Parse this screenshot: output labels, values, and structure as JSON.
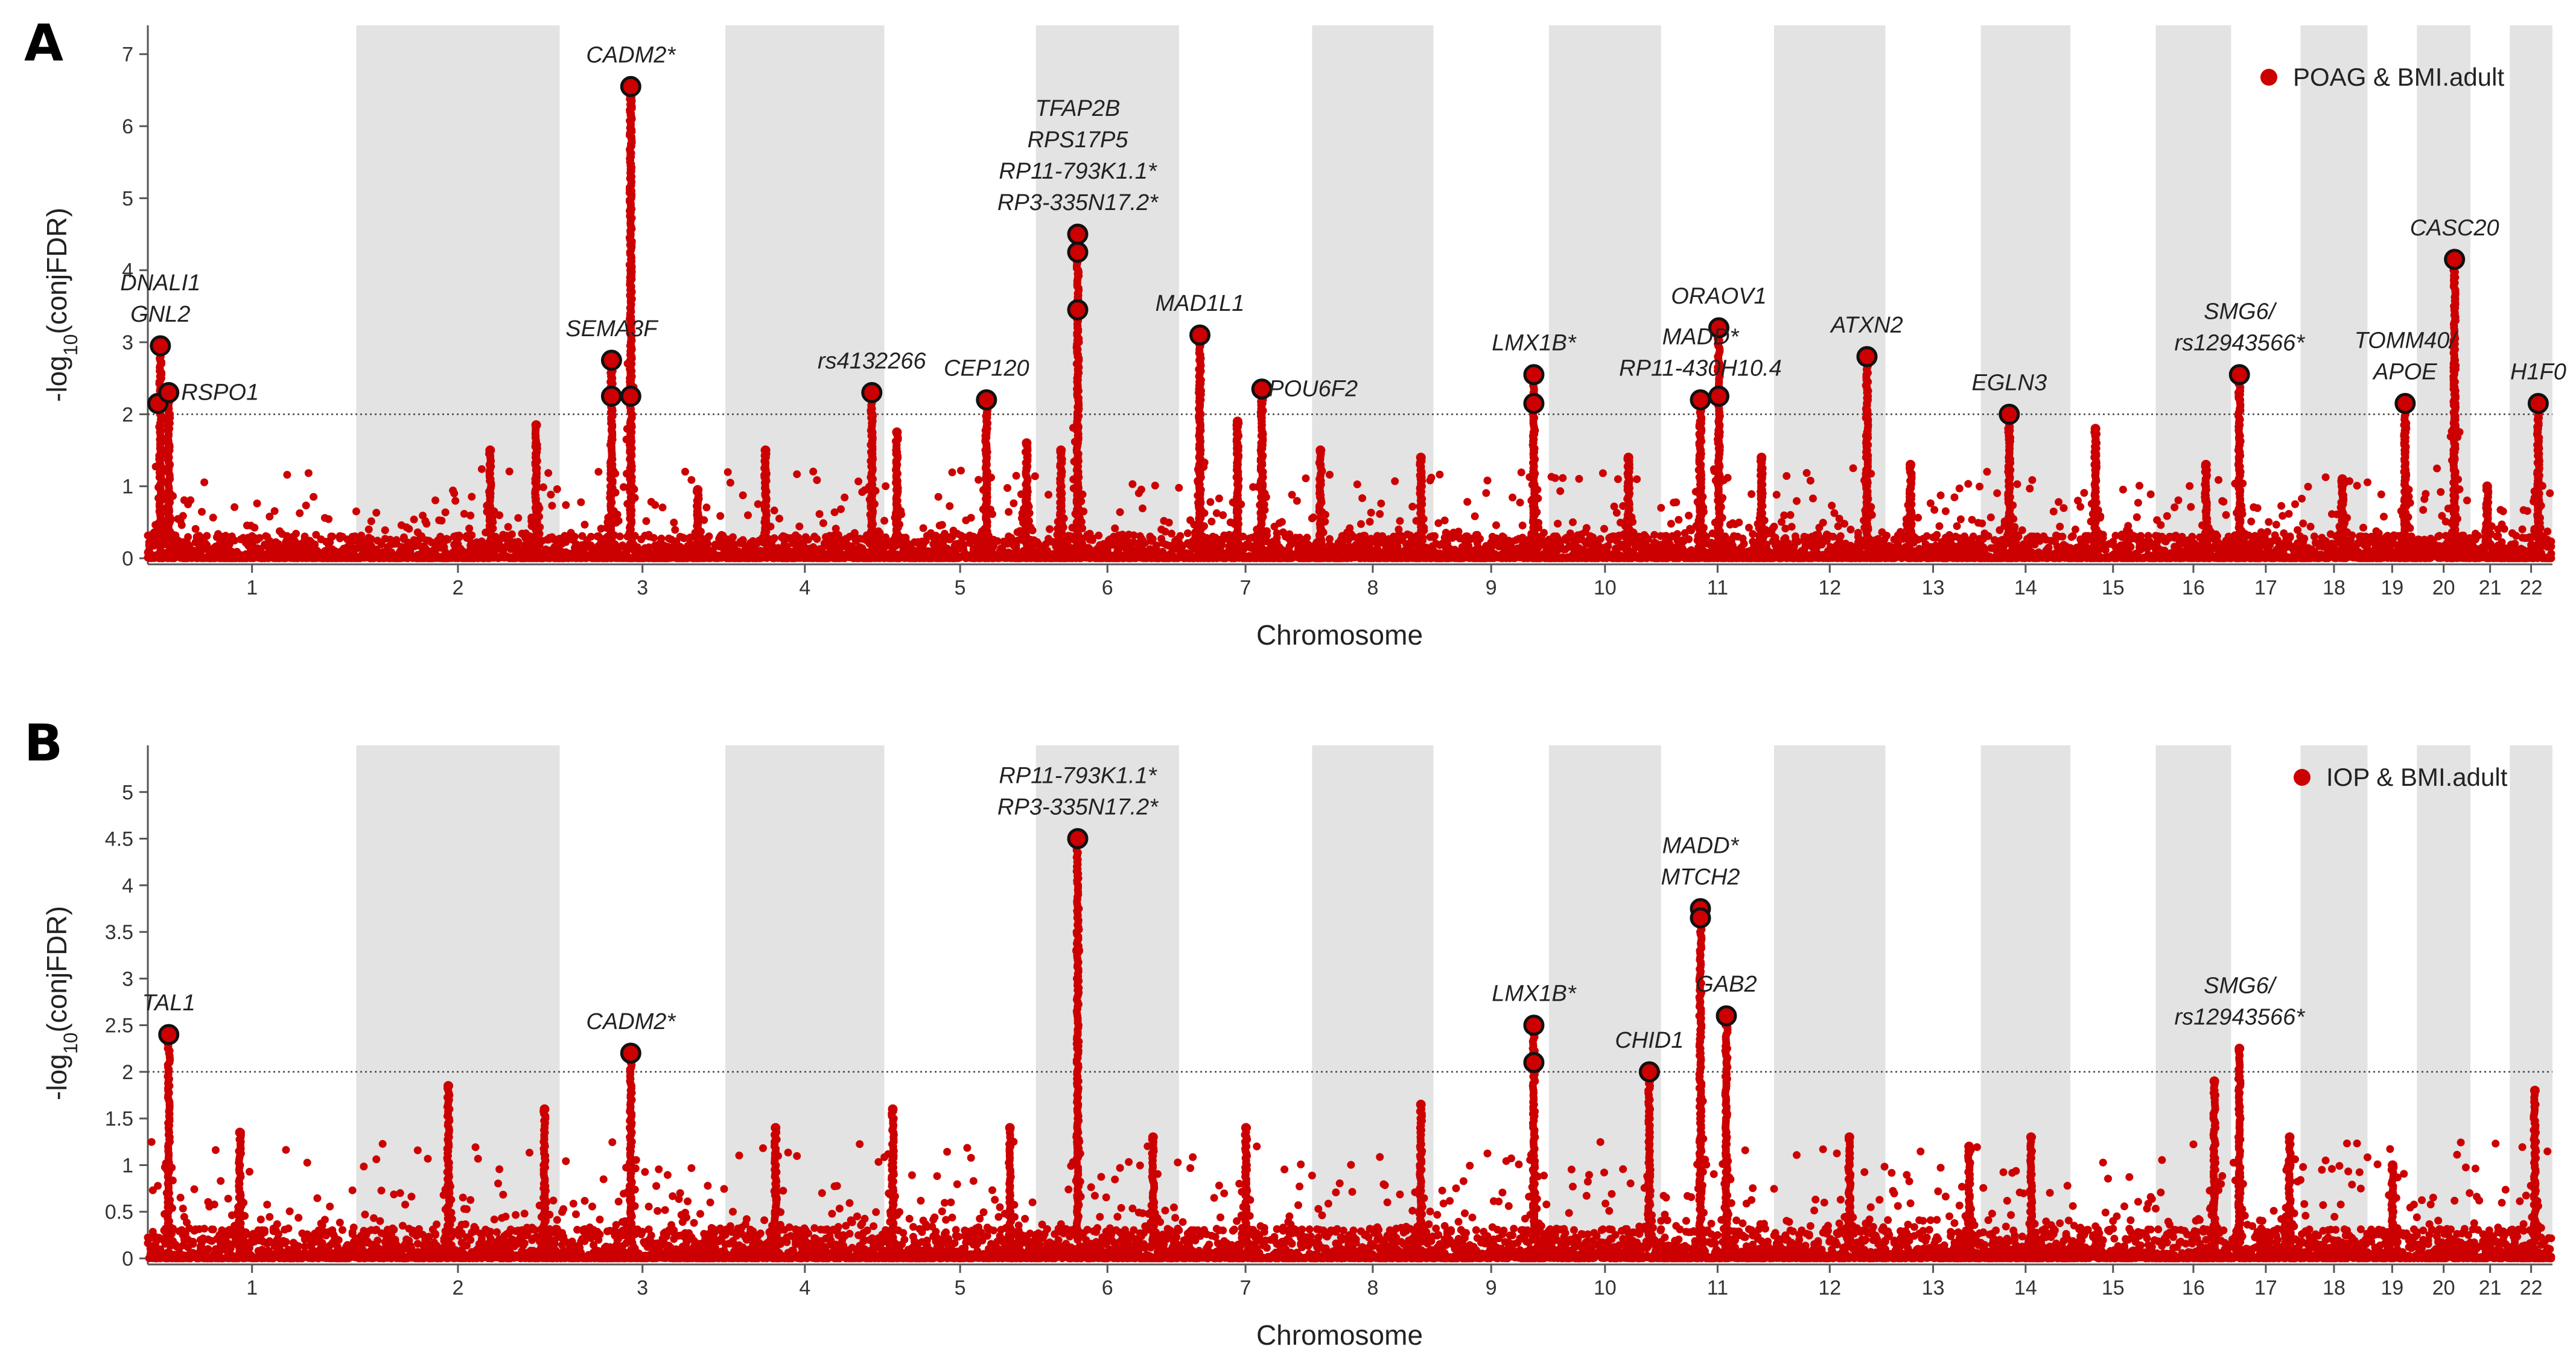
{
  "figure": {
    "title": ""
  },
  "chart_data": [
    {
      "type": "scatter",
      "panel": "A",
      "title": "",
      "xlabel": "Chromosome",
      "ylabel": "-log10(conjFDR)",
      "ylabel_main": "-log",
      "ylabel_sub": "10",
      "ylabel_rest": "(conjFDR)",
      "legend": "POAG & BMI.adult",
      "legend_position": "top-right",
      "ylim": [
        0,
        7.4
      ],
      "yticks": [
        0,
        1,
        2,
        3,
        4,
        5,
        6,
        7
      ],
      "threshold": 2,
      "chromosomes": [
        "1",
        "2",
        "3",
        "4",
        "5",
        "6",
        "7",
        "8",
        "9",
        "10",
        "11",
        "12",
        "13",
        "14",
        "15",
        "16",
        "17",
        "18",
        "19",
        "20",
        "21",
        "22"
      ],
      "chrom_sizes": [
        249,
        243,
        198,
        190,
        181,
        171,
        159,
        145,
        138,
        134,
        135,
        133,
        114,
        107,
        102,
        90,
        83,
        80,
        59,
        64,
        47,
        51
      ],
      "peaks": [
        {
          "chrom": 1,
          "pos": 15,
          "height": 2.95
        },
        {
          "chrom": 1,
          "pos": 25,
          "height": 2.3
        },
        {
          "chrom": 2,
          "pos": 160,
          "height": 1.5
        },
        {
          "chrom": 2,
          "pos": 215,
          "height": 1.85
        },
        {
          "chrom": 3,
          "pos": 62,
          "height": 2.75
        },
        {
          "chrom": 3,
          "pos": 85,
          "height": 6.55
        },
        {
          "chrom": 3,
          "pos": 165,
          "height": 0.95
        },
        {
          "chrom": 4,
          "pos": 48,
          "height": 1.5
        },
        {
          "chrom": 4,
          "pos": 175,
          "height": 2.3
        },
        {
          "chrom": 5,
          "pos": 15,
          "height": 1.75
        },
        {
          "chrom": 5,
          "pos": 122,
          "height": 2.2
        },
        {
          "chrom": 5,
          "pos": 170,
          "height": 1.6
        },
        {
          "chrom": 6,
          "pos": 30,
          "height": 1.5
        },
        {
          "chrom": 6,
          "pos": 50,
          "height": 4.5
        },
        {
          "chrom": 7,
          "pos": 25,
          "height": 3.1
        },
        {
          "chrom": 7,
          "pos": 70,
          "height": 1.9
        },
        {
          "chrom": 7,
          "pos": 99,
          "height": 2.35
        },
        {
          "chrom": 8,
          "pos": 10,
          "height": 1.5
        },
        {
          "chrom": 8,
          "pos": 130,
          "height": 1.4
        },
        {
          "chrom": 9,
          "pos": 120,
          "height": 2.55
        },
        {
          "chrom": 10,
          "pos": 95,
          "height": 1.4
        },
        {
          "chrom": 11,
          "pos": 47,
          "height": 2.2
        },
        {
          "chrom": 11,
          "pos": 69,
          "height": 3.2
        },
        {
          "chrom": 11,
          "pos": 120,
          "height": 1.4
        },
        {
          "chrom": 12,
          "pos": 111,
          "height": 2.8
        },
        {
          "chrom": 13,
          "pos": 30,
          "height": 1.3
        },
        {
          "chrom": 14,
          "pos": 34,
          "height": 2.0
        },
        {
          "chrom": 15,
          "pos": 30,
          "height": 1.8
        },
        {
          "chrom": 16,
          "pos": 60,
          "height": 1.3
        },
        {
          "chrom": 17,
          "pos": 10,
          "height": 2.55
        },
        {
          "chrom": 18,
          "pos": 50,
          "height": 1.1
        },
        {
          "chrom": 19,
          "pos": 45,
          "height": 2.15
        },
        {
          "chrom": 20,
          "pos": 45,
          "height": 4.15
        },
        {
          "chrom": 21,
          "pos": 20,
          "height": 1.0
        },
        {
          "chrom": 22,
          "pos": 34,
          "height": 2.15
        }
      ],
      "highlights": [
        {
          "chrom": 1,
          "pos": 12,
          "value": 2.15
        },
        {
          "chrom": 1,
          "pos": 15,
          "value": 2.95
        },
        {
          "chrom": 1,
          "pos": 25,
          "value": 2.3
        },
        {
          "chrom": 3,
          "pos": 62,
          "value": 2.75
        },
        {
          "chrom": 3,
          "pos": 62,
          "value": 2.25
        },
        {
          "chrom": 3,
          "pos": 85,
          "value": 6.55
        },
        {
          "chrom": 3,
          "pos": 85,
          "value": 2.25
        },
        {
          "chrom": 4,
          "pos": 175,
          "value": 2.3
        },
        {
          "chrom": 5,
          "pos": 122,
          "value": 2.2
        },
        {
          "chrom": 6,
          "pos": 50,
          "value": 4.5
        },
        {
          "chrom": 6,
          "pos": 50,
          "value": 4.25
        },
        {
          "chrom": 6,
          "pos": 50,
          "value": 3.45
        },
        {
          "chrom": 7,
          "pos": 25,
          "value": 3.1
        },
        {
          "chrom": 7,
          "pos": 99,
          "value": 2.35
        },
        {
          "chrom": 9,
          "pos": 120,
          "value": 2.55
        },
        {
          "chrom": 9,
          "pos": 120,
          "value": 2.15
        },
        {
          "chrom": 11,
          "pos": 47,
          "value": 2.2
        },
        {
          "chrom": 11,
          "pos": 69,
          "value": 3.2
        },
        {
          "chrom": 11,
          "pos": 69,
          "value": 2.25
        },
        {
          "chrom": 12,
          "pos": 111,
          "value": 2.8
        },
        {
          "chrom": 14,
          "pos": 34,
          "value": 2.0
        },
        {
          "chrom": 17,
          "pos": 10,
          "value": 2.55
        },
        {
          "chrom": 19,
          "pos": 45,
          "value": 2.15
        },
        {
          "chrom": 20,
          "pos": 45,
          "value": 4.15
        },
        {
          "chrom": 22,
          "pos": 34,
          "value": 2.15
        }
      ],
      "annotations": [
        {
          "lines": [
            "DNALI1",
            "GNL2"
          ],
          "chrom": 1,
          "pos": 15,
          "value": 2.95
        },
        {
          "lines": [
            "RSPO1"
          ],
          "chrom": 1,
          "pos": 25,
          "value": 2.3
        },
        {
          "lines": [
            "SEMA3F"
          ],
          "chrom": 3,
          "pos": 62,
          "value": 2.75
        },
        {
          "lines": [
            "CADM2*"
          ],
          "chrom": 3,
          "pos": 85,
          "value": 6.55
        },
        {
          "lines": [
            "rs4132266"
          ],
          "chrom": 4,
          "pos": 175,
          "value": 2.3
        },
        {
          "lines": [
            "CEP120"
          ],
          "chrom": 5,
          "pos": 122,
          "value": 2.2
        },
        {
          "lines": [
            "TFAP2B",
            "RPS17P5",
            "RP11-793K1.1*",
            "RP3-335N17.2*"
          ],
          "chrom": 6,
          "pos": 50,
          "value": 4.5
        },
        {
          "lines": [
            "MAD1L1"
          ],
          "chrom": 7,
          "pos": 25,
          "value": 3.1
        },
        {
          "lines": [
            "POU6F2"
          ],
          "chrom": 7,
          "pos": 99,
          "value": 2.35
        },
        {
          "lines": [
            "LMX1B*"
          ],
          "chrom": 9,
          "pos": 120,
          "value": 2.55
        },
        {
          "lines": [
            "MADD*",
            "RP11-430H10.4"
          ],
          "chrom": 11,
          "pos": 47,
          "value": 2.2
        },
        {
          "lines": [
            "ORAOV1"
          ],
          "chrom": 11,
          "pos": 69,
          "value": 3.2
        },
        {
          "lines": [
            "ATXN2"
          ],
          "chrom": 12,
          "pos": 111,
          "value": 2.8
        },
        {
          "lines": [
            "EGLN3"
          ],
          "chrom": 14,
          "pos": 34,
          "value": 2.0
        },
        {
          "lines": [
            "SMG6/",
            "rs12943566*"
          ],
          "chrom": 17,
          "pos": 10,
          "value": 2.55
        },
        {
          "lines": [
            "TOMM40/",
            "APOE"
          ],
          "chrom": 19,
          "pos": 45,
          "value": 2.15
        },
        {
          "lines": [
            "CASC20"
          ],
          "chrom": 20,
          "pos": 45,
          "value": 4.15
        },
        {
          "lines": [
            "H1F0"
          ],
          "chrom": 22,
          "pos": 34,
          "value": 2.15
        }
      ]
    },
    {
      "type": "scatter",
      "panel": "B",
      "title": "",
      "xlabel": "Chromosome",
      "ylabel": "-log10(conjFDR)",
      "ylabel_main": "-log",
      "ylabel_sub": "10",
      "ylabel_rest": "(conjFDR)",
      "legend": "IOP & BMI.adult",
      "legend_position": "top-right",
      "ylim": [
        0,
        5.5
      ],
      "yticks": [
        0,
        0.5,
        1,
        1.5,
        2,
        2.5,
        3,
        3.5,
        4,
        4.5,
        5
      ],
      "threshold": 2,
      "chromosomes": [
        "1",
        "2",
        "3",
        "4",
        "5",
        "6",
        "7",
        "8",
        "9",
        "10",
        "11",
        "12",
        "13",
        "14",
        "15",
        "16",
        "17",
        "18",
        "19",
        "20",
        "21",
        "22"
      ],
      "chrom_sizes": [
        249,
        243,
        198,
        190,
        181,
        171,
        159,
        145,
        138,
        134,
        135,
        133,
        114,
        107,
        102,
        90,
        83,
        80,
        59,
        64,
        47,
        51
      ],
      "peaks": [
        {
          "chrom": 1,
          "pos": 25,
          "height": 2.4
        },
        {
          "chrom": 1,
          "pos": 110,
          "height": 1.35
        },
        {
          "chrom": 2,
          "pos": 110,
          "height": 1.85
        },
        {
          "chrom": 2,
          "pos": 225,
          "height": 1.6
        },
        {
          "chrom": 3,
          "pos": 85,
          "height": 2.2
        },
        {
          "chrom": 4,
          "pos": 60,
          "height": 1.4
        },
        {
          "chrom": 5,
          "pos": 10,
          "height": 1.6
        },
        {
          "chrom": 5,
          "pos": 150,
          "height": 1.4
        },
        {
          "chrom": 6,
          "pos": 50,
          "height": 4.5
        },
        {
          "chrom": 6,
          "pos": 140,
          "height": 1.3
        },
        {
          "chrom": 7,
          "pos": 80,
          "height": 1.4
        },
        {
          "chrom": 8,
          "pos": 130,
          "height": 1.65
        },
        {
          "chrom": 9,
          "pos": 120,
          "height": 2.5
        },
        {
          "chrom": 10,
          "pos": 120,
          "height": 2.0
        },
        {
          "chrom": 11,
          "pos": 47,
          "height": 3.75
        },
        {
          "chrom": 11,
          "pos": 78,
          "height": 2.6
        },
        {
          "chrom": 12,
          "pos": 90,
          "height": 1.3
        },
        {
          "chrom": 13,
          "pos": 100,
          "height": 1.2
        },
        {
          "chrom": 14,
          "pos": 60,
          "height": 1.3
        },
        {
          "chrom": 16,
          "pos": 70,
          "height": 1.9
        },
        {
          "chrom": 17,
          "pos": 10,
          "height": 2.25
        },
        {
          "chrom": 17,
          "pos": 70,
          "height": 1.3
        },
        {
          "chrom": 19,
          "pos": 30,
          "height": 1.0
        },
        {
          "chrom": 22,
          "pos": 30,
          "height": 1.8
        }
      ],
      "highlights": [
        {
          "chrom": 1,
          "pos": 25,
          "value": 2.4
        },
        {
          "chrom": 3,
          "pos": 85,
          "value": 2.2
        },
        {
          "chrom": 6,
          "pos": 50,
          "value": 4.5
        },
        {
          "chrom": 9,
          "pos": 120,
          "value": 2.5
        },
        {
          "chrom": 9,
          "pos": 120,
          "value": 2.1
        },
        {
          "chrom": 10,
          "pos": 120,
          "value": 2.0
        },
        {
          "chrom": 11,
          "pos": 47,
          "value": 3.75
        },
        {
          "chrom": 11,
          "pos": 47,
          "value": 3.65
        },
        {
          "chrom": 11,
          "pos": 78,
          "value": 2.6
        }
      ],
      "extra_points": [
        {
          "chrom": 6,
          "pos": 50,
          "value": 3.3
        }
      ],
      "annotations": [
        {
          "lines": [
            "TAL1"
          ],
          "chrom": 1,
          "pos": 25,
          "value": 2.4
        },
        {
          "lines": [
            "CADM2*"
          ],
          "chrom": 3,
          "pos": 85,
          "value": 2.2
        },
        {
          "lines": [
            "RP11-793K1.1*",
            "RP3-335N17.2*"
          ],
          "chrom": 6,
          "pos": 50,
          "value": 4.5
        },
        {
          "lines": [
            "LMX1B*"
          ],
          "chrom": 9,
          "pos": 120,
          "value": 2.5
        },
        {
          "lines": [
            "CHID1"
          ],
          "chrom": 10,
          "pos": 120,
          "value": 2.0
        },
        {
          "lines": [
            "MADD*",
            "MTCH2"
          ],
          "chrom": 11,
          "pos": 47,
          "value": 3.75
        },
        {
          "lines": [
            "GAB2"
          ],
          "chrom": 11,
          "pos": 78,
          "value": 2.6
        },
        {
          "lines": [
            "SMG6/",
            "rs12943566*"
          ],
          "chrom": 17,
          "pos": 10,
          "value": 2.25
        }
      ]
    }
  ]
}
